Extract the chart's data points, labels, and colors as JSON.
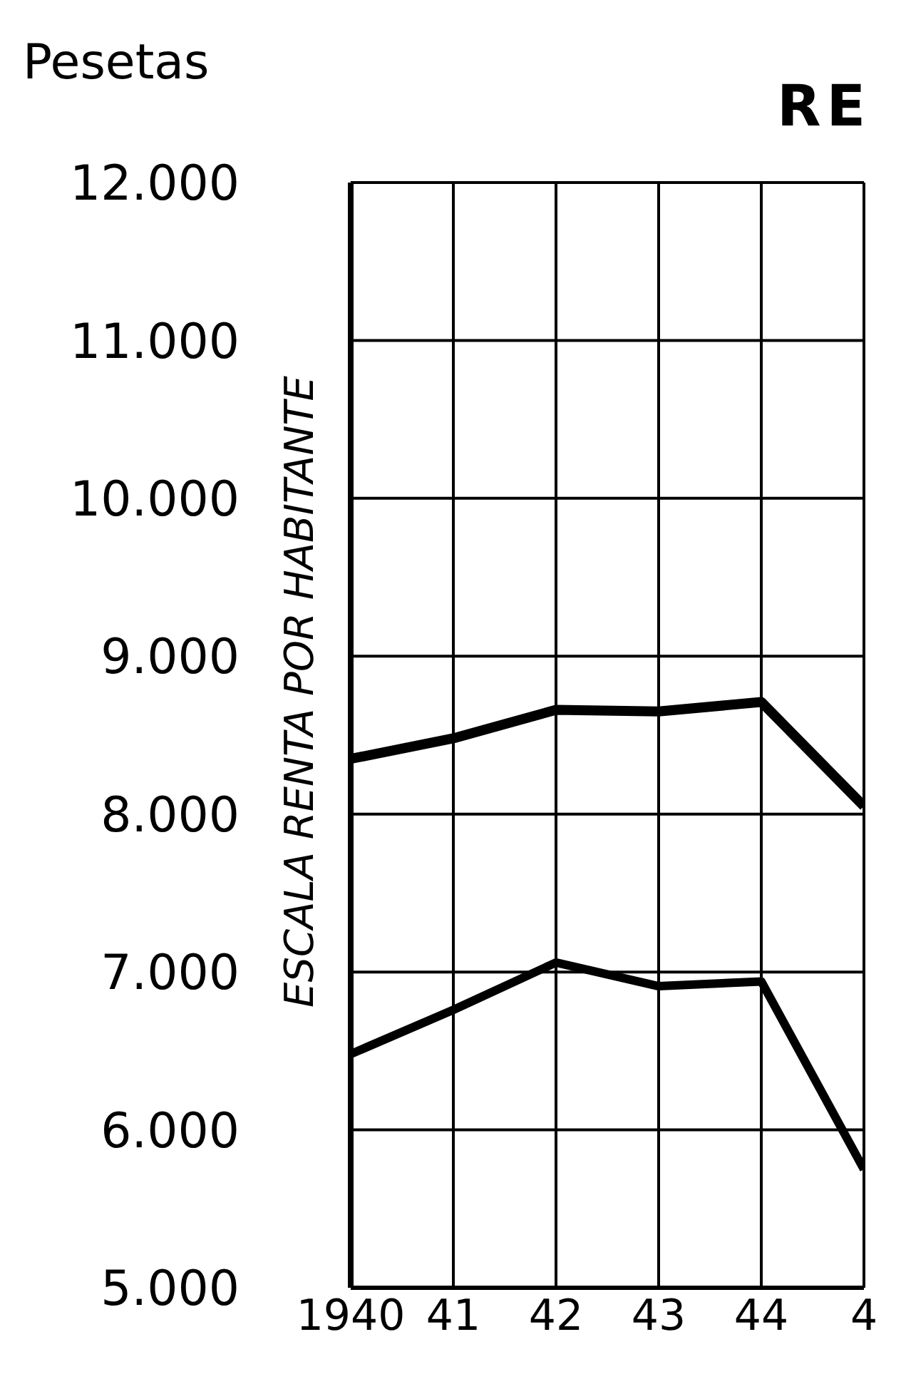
{
  "chart_data": {
    "type": "line",
    "title": "RE",
    "ylabel": "Pesetas",
    "annotations": [
      "ESCALA RENTA POR HABITANTE"
    ],
    "categories": [
      "1940",
      "41",
      "42",
      "43",
      "44",
      "4"
    ],
    "series": [
      {
        "color": "#000000",
        "values": [
          8350,
          8480,
          8660,
          8650,
          8710,
          8050
        ]
      },
      {
        "color": "#000000",
        "values": [
          6480,
          6760,
          7060,
          6910,
          6940,
          5750
        ]
      }
    ],
    "ylim": [
      5000,
      12000
    ],
    "yticks": [
      {
        "value": 5000,
        "label": "5.000"
      },
      {
        "value": 6000,
        "label": "6.000"
      },
      {
        "value": 7000,
        "label": "7.000"
      },
      {
        "value": 8000,
        "label": "8.000"
      },
      {
        "value": 9000,
        "label": "9.000"
      },
      {
        "value": 10000,
        "label": "10.000"
      },
      {
        "value": 11000,
        "label": "11.000"
      },
      {
        "value": 12000,
        "label": "12.000"
      }
    ],
    "grid": true,
    "marker": "none"
  }
}
